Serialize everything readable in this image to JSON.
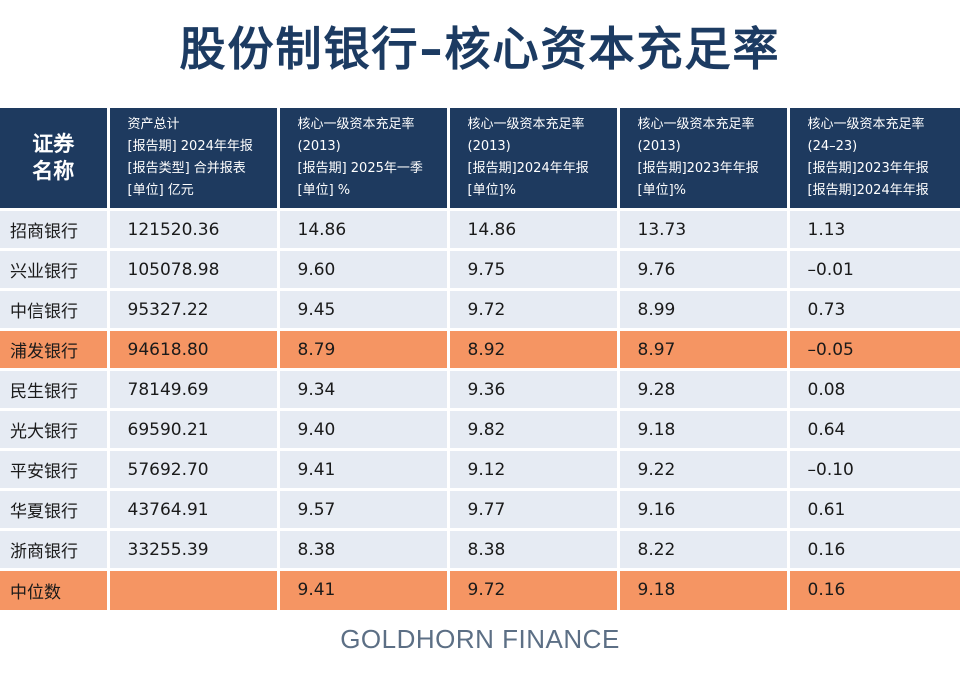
{
  "title": "股份制银行–核心资本充足率",
  "header": {
    "name": [
      "证券",
      "名称"
    ],
    "columns": [
      [
        "资产总计",
        "[报告期] 2024年年报",
        "[报告类型] 合并报表",
        "[单位] 亿元"
      ],
      [
        "核心一级资本充足率",
        "(2013)",
        "[报告期] 2025年一季",
        "[单位] %"
      ],
      [
        "核心一级资本充足率",
        "(2013)",
        "[报告期]2024年年报",
        "[单位]%"
      ],
      [
        "核心一级资本充足率",
        "(2013)",
        "[报告期]2023年年报",
        "[单位]%"
      ],
      [
        "核心一级资本充足率",
        "(24–23)",
        "[报告期]2023年年报",
        "[报告期]2024年年报"
      ]
    ]
  },
  "rows": [
    {
      "name": "招商银行",
      "values": [
        "121520.36",
        "14.86",
        "14.86",
        "13.73",
        "1.13"
      ],
      "highlight": false
    },
    {
      "name": "兴业银行",
      "values": [
        "105078.98",
        "9.60",
        "9.75",
        "9.76",
        "–0.01"
      ],
      "highlight": false
    },
    {
      "name": "中信银行",
      "values": [
        "95327.22",
        "9.45",
        "9.72",
        "8.99",
        "0.73"
      ],
      "highlight": false
    },
    {
      "name": "浦发银行",
      "values": [
        "94618.80",
        "8.79",
        "8.92",
        "8.97",
        "–0.05"
      ],
      "highlight": true
    },
    {
      "name": "民生银行",
      "values": [
        "78149.69",
        "9.34",
        "9.36",
        "9.28",
        "0.08"
      ],
      "highlight": false
    },
    {
      "name": "光大银行",
      "values": [
        "69590.21",
        "9.40",
        "9.82",
        "9.18",
        "0.64"
      ],
      "highlight": false
    },
    {
      "name": "平安银行",
      "values": [
        "57692.70",
        "9.41",
        "9.12",
        "9.22",
        "–0.10"
      ],
      "highlight": false
    },
    {
      "name": "华夏银行",
      "values": [
        "43764.91",
        "9.57",
        "9.77",
        "9.16",
        "0.61"
      ],
      "highlight": false
    },
    {
      "name": "浙商银行",
      "values": [
        "33255.39",
        "8.38",
        "8.38",
        "8.22",
        "0.16"
      ],
      "highlight": false
    },
    {
      "name": "中位数",
      "values": [
        "",
        "9.41",
        "9.72",
        "9.18",
        "0.16"
      ],
      "highlight": true
    }
  ],
  "colors": {
    "header_bg": "#1e3a5f",
    "row_bg": "#e6ebf3",
    "highlight_bg": "#f59563",
    "title": "#1c3b62"
  },
  "footer": "GOLDHORN FINANCE"
}
